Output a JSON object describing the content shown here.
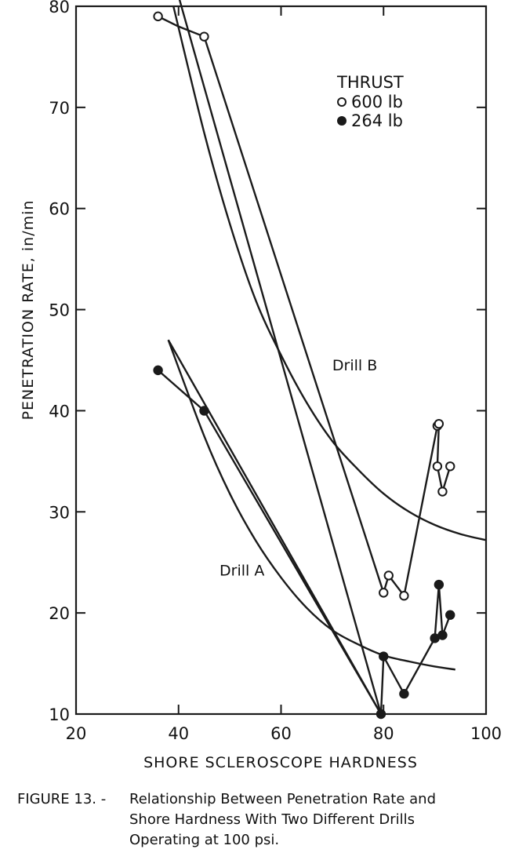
{
  "chart_data": {
    "type": "scatter",
    "title": "",
    "xlabel": "SHORE SCLEROSCOPE HARDNESS",
    "ylabel": "PENETRATION RATE, in/min",
    "xlim": [
      20,
      100
    ],
    "ylim": [
      10,
      80
    ],
    "xticks": [
      "20",
      "40",
      "60",
      "80",
      "100"
    ],
    "yticks": [
      "10",
      "20",
      "30",
      "40",
      "50",
      "60",
      "70",
      "80"
    ],
    "legend": {
      "title": "THRUST",
      "position": "top-right",
      "entries": [
        {
          "label": "600 lb",
          "marker": "open-circle"
        },
        {
          "label": "264 lb",
          "marker": "filled-circle"
        }
      ]
    },
    "series": [
      {
        "name": "600 lb",
        "marker": "open",
        "x": [
          36,
          45,
          80,
          81,
          84,
          90.5,
          90.8,
          90.5,
          91.5,
          93
        ],
        "y": [
          79,
          77,
          22,
          23.7,
          21.7,
          38.5,
          38.7,
          34.5,
          32,
          34.5
        ]
      },
      {
        "name": "264 lb",
        "marker": "filled",
        "x": [
          36,
          45,
          79.5,
          80,
          84,
          90,
          90.8,
          91.5,
          93
        ],
        "y": [
          44,
          40,
          10,
          15.7,
          12,
          17.5,
          22.8,
          17.8,
          19.8
        ]
      }
    ],
    "connecting_lines": [
      {
        "x": [
          36,
          40,
          45,
          80,
          81,
          84,
          90.5,
          90.8,
          90.5,
          91.5,
          93
        ],
        "y": [
          79,
          78,
          77,
          22,
          23.7,
          21.7,
          38.5,
          38.7,
          34.5,
          32,
          34.5
        ]
      },
      {
        "x": [
          36,
          45,
          79.5,
          80,
          84,
          90,
          90.8,
          91.5,
          93
        ],
        "y": [
          44,
          40,
          10,
          15.7,
          12,
          17.5,
          22.8,
          17.8,
          19.8
        ]
      },
      {
        "x": [
          40,
          79.5
        ],
        "y": [
          81,
          10
        ]
      },
      {
        "x": [
          38,
          79.5
        ],
        "y": [
          47,
          10
        ]
      }
    ],
    "fitted_curves": [
      {
        "label": "Drill B",
        "x": [
          39,
          45,
          50,
          55,
          60,
          65,
          70,
          75,
          80,
          85,
          90,
          95,
          100
        ],
        "y": [
          80,
          67.5,
          58.5,
          51,
          45.5,
          40.8,
          37,
          34.2,
          31.8,
          30,
          28.7,
          27.8,
          27.2
        ]
      },
      {
        "label": "Drill A",
        "x": [
          38,
          45,
          50,
          55,
          60,
          65,
          70,
          75,
          80,
          85,
          90,
          94
        ],
        "y": [
          47,
          37.5,
          31.8,
          27.2,
          23.5,
          20.5,
          18.3,
          16.9,
          15.8,
          15.2,
          14.7,
          14.4
        ]
      }
    ],
    "annotations": [
      {
        "text": "Drill B",
        "x": 70,
        "y": 44
      },
      {
        "text": "Drill A",
        "x": 48,
        "y": 23.7
      }
    ]
  },
  "caption": {
    "figure_label": "FIGURE 13. -",
    "lines": [
      "Relationship Between Penetration Rate and",
      "Shore Hardness With Two Different Drills",
      "Operating at 100 psi."
    ]
  }
}
